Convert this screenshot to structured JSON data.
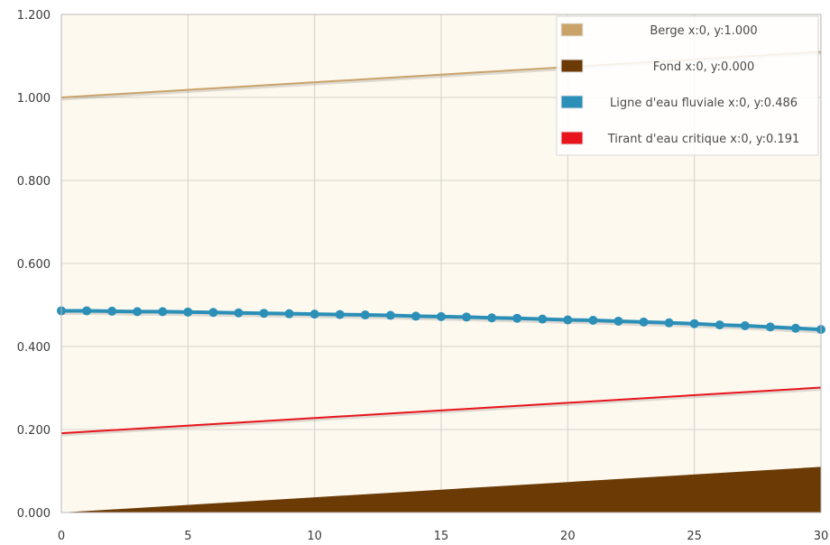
{
  "chart_data": {
    "type": "line",
    "xlim": [
      0,
      30
    ],
    "ylim": [
      0,
      1.2
    ],
    "x_ticks": [
      "0",
      "5",
      "10",
      "15",
      "20",
      "25",
      "30"
    ],
    "y_ticks": [
      "0.000",
      "0.200",
      "0.400",
      "0.600",
      "0.800",
      "1.000",
      "1.200"
    ],
    "grid": true,
    "legend_position": "top-right",
    "background_color": "#fdf9ef",
    "series": [
      {
        "name": "Berge",
        "legend_label": "Berge x:0, y:1.000",
        "color": "#c9a36a",
        "style": "line",
        "x": [
          0,
          30
        ],
        "y": [
          1.0,
          1.11
        ]
      },
      {
        "name": "Fond",
        "legend_label": "Fond x:0, y:0.000",
        "color": "#6b3a05",
        "style": "area",
        "x": [
          0,
          30
        ],
        "y": [
          0.0,
          0.11
        ]
      },
      {
        "name": "Ligne d'eau fluviale",
        "legend_label": "Ligne d'eau fluviale x:0, y:0.486",
        "color": "#2b8fb8",
        "style": "line-markers",
        "x": [
          0,
          1,
          2,
          3,
          4,
          5,
          6,
          7,
          8,
          9,
          10,
          11,
          12,
          13,
          14,
          15,
          16,
          17,
          18,
          19,
          20,
          21,
          22,
          23,
          24,
          25,
          26,
          27,
          28,
          29,
          30
        ],
        "y": [
          0.486,
          0.486,
          0.485,
          0.484,
          0.484,
          0.483,
          0.482,
          0.481,
          0.48,
          0.479,
          0.478,
          0.477,
          0.476,
          0.475,
          0.473,
          0.472,
          0.471,
          0.469,
          0.468,
          0.466,
          0.464,
          0.463,
          0.461,
          0.459,
          0.457,
          0.455,
          0.452,
          0.45,
          0.447,
          0.444,
          0.441
        ]
      },
      {
        "name": "Tirant d'eau critique",
        "legend_label": "Tirant d'eau critique x:0, y:0.191",
        "color": "#e8141c",
        "style": "line",
        "x": [
          0,
          30
        ],
        "y": [
          0.191,
          0.301
        ]
      }
    ]
  }
}
